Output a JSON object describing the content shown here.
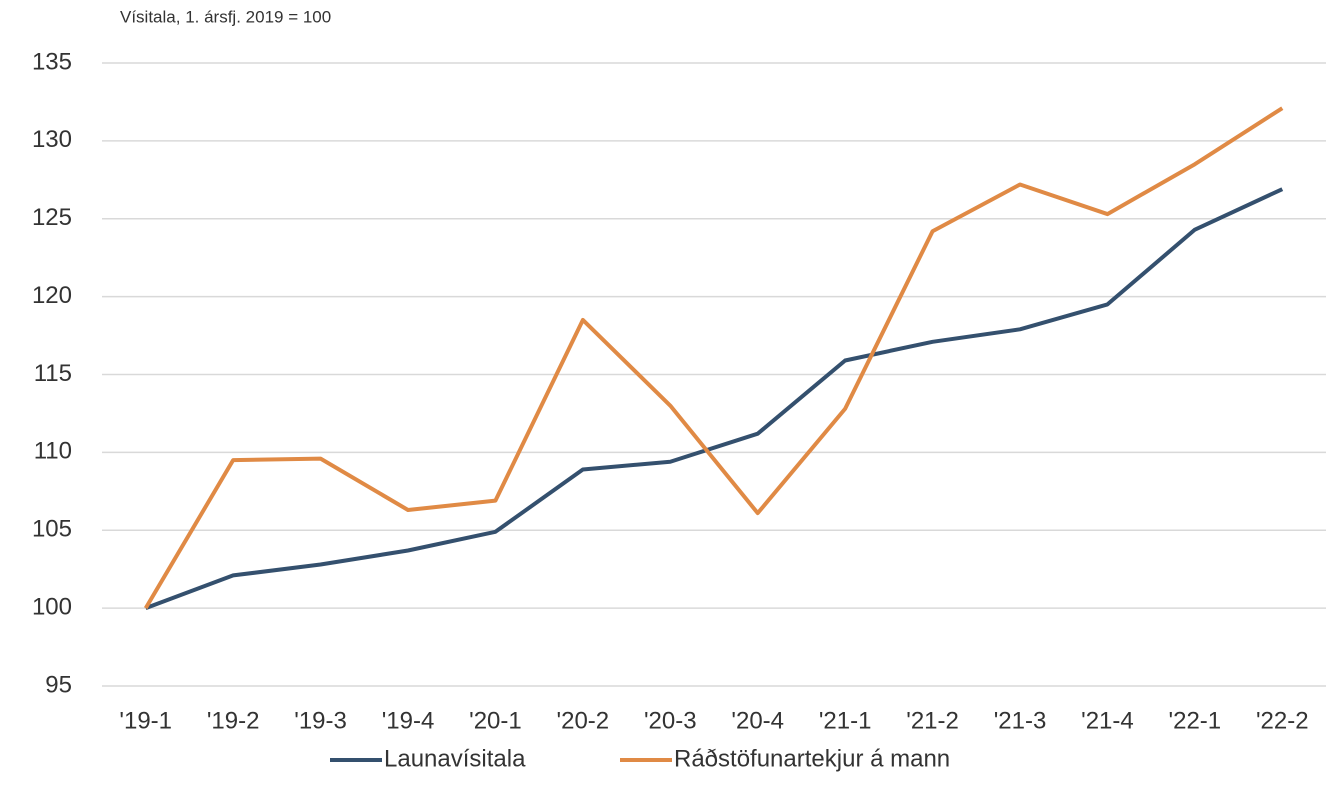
{
  "chart_data": {
    "type": "line",
    "subtitle": "Vísitala, 1. ársfj. 2019 = 100",
    "categories": [
      "'19-1",
      "'19-2",
      "'19-3",
      "'19-4",
      "'20-1",
      "'20-2",
      "'20-3",
      "'20-4",
      "'21-1",
      "'21-2",
      "'21-3",
      "'21-4",
      "'22-1",
      "'22-2"
    ],
    "series": [
      {
        "name": "Launavísitala",
        "color": "#34506e",
        "values": [
          100,
          102.1,
          102.8,
          103.7,
          104.9,
          108.9,
          109.4,
          111.2,
          115.9,
          117.1,
          117.9,
          119.5,
          124.3,
          126.9
        ]
      },
      {
        "name": "Ráðstöfunartekjur á mann",
        "color": "#e08a45",
        "values": [
          100,
          109.5,
          109.6,
          106.3,
          106.9,
          118.5,
          113.0,
          106.1,
          112.8,
          124.2,
          127.2,
          125.3,
          128.5,
          132.1
        ]
      }
    ],
    "ylim": [
      95,
      135
    ],
    "yticks": [
      95,
      100,
      105,
      110,
      115,
      120,
      125,
      130,
      135
    ],
    "grid": true,
    "legend": "bottom"
  }
}
